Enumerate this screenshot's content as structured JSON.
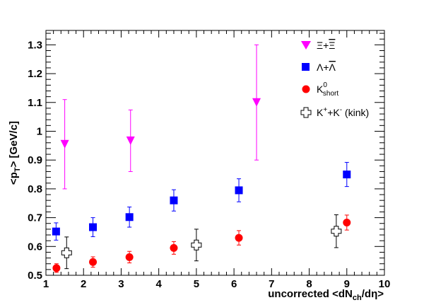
{
  "chart_data": {
    "type": "scatter",
    "xlabel": "uncorrected <dN_ch/dη>",
    "ylabel": "<p_T> [GeV/c]",
    "xlim": [
      1,
      10
    ],
    "ylim": [
      0.5,
      1.35
    ],
    "x_ticks": [
      "1",
      "2",
      "3",
      "4",
      "5",
      "6",
      "7",
      "8",
      "9",
      "10"
    ],
    "y_ticks": [
      "0.5",
      "0.6",
      "0.7",
      "0.8",
      "0.9",
      "1",
      "1.1",
      "1.2",
      "1.3"
    ],
    "grid": false,
    "legend_position": "top-right",
    "series": [
      {
        "name": "Ξ+Ξ̄",
        "marker": "triangle-down",
        "color": "#ff00ff",
        "points": [
          {
            "x": 1.5,
            "y": 0.955,
            "err": 0.155
          },
          {
            "x": 3.25,
            "y": 0.967,
            "err": 0.107
          },
          {
            "x": 6.6,
            "y": 1.1,
            "err": 0.2
          }
        ]
      },
      {
        "name": "Λ+Λ̄",
        "marker": "square",
        "color": "#0000ff",
        "points": [
          {
            "x": 1.27,
            "y": 0.652,
            "err": 0.03
          },
          {
            "x": 2.25,
            "y": 0.667,
            "err": 0.033
          },
          {
            "x": 3.22,
            "y": 0.702,
            "err": 0.035
          },
          {
            "x": 4.4,
            "y": 0.76,
            "err": 0.037
          },
          {
            "x": 6.13,
            "y": 0.795,
            "err": 0.04
          },
          {
            "x": 9.0,
            "y": 0.85,
            "err": 0.042
          }
        ]
      },
      {
        "name": "K0short",
        "marker": "circle",
        "color": "#ff0000",
        "points": [
          {
            "x": 1.28,
            "y": 0.525,
            "err": 0.015
          },
          {
            "x": 2.25,
            "y": 0.546,
            "err": 0.018
          },
          {
            "x": 3.22,
            "y": 0.563,
            "err": 0.02
          },
          {
            "x": 4.4,
            "y": 0.595,
            "err": 0.022
          },
          {
            "x": 6.13,
            "y": 0.63,
            "err": 0.025
          },
          {
            "x": 9.0,
            "y": 0.683,
            "err": 0.026
          }
        ]
      },
      {
        "name": "K++K- (kink)",
        "marker": "open-cross",
        "color": "#000000",
        "points": [
          {
            "x": 1.55,
            "y": 0.578,
            "err": 0.055
          },
          {
            "x": 5.0,
            "y": 0.605,
            "err": 0.055
          },
          {
            "x": 8.72,
            "y": 0.653,
            "err": 0.057
          }
        ]
      }
    ]
  }
}
